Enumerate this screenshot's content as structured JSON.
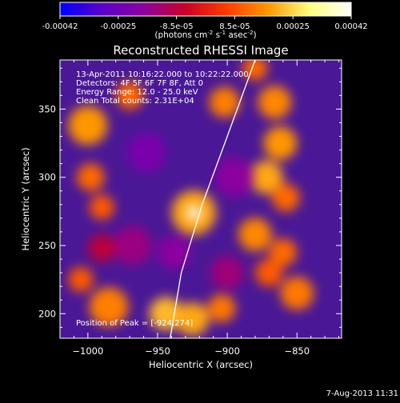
{
  "chart_data": {
    "type": "heatmap",
    "title": "Reconstructed RHESSI Image",
    "xlabel": "Heliocentric X (arcsec)",
    "ylabel": "Heliocentric Y (arcsec)",
    "xlim": [
      -1020,
      -818
    ],
    "ylim": [
      182,
      386
    ],
    "xticks": [
      -1000,
      -950,
      -900,
      -850
    ],
    "yticks": [
      200,
      250,
      300,
      350
    ],
    "info_lines": [
      "13-Apr-2011 10:16:22.000 to 10:22:22.000",
      "Detectors: 4F 5F 6F 7F 8F, Att 0",
      "Energy Range: 12.0 - 25.0 keV",
      "Clean     Total counts: 2.31E+04"
    ],
    "peak_label": "Position of Peak = [-924,274]",
    "peak": {
      "x": -924,
      "y": 274
    },
    "colorbar": {
      "min": -0.00042,
      "max": 0.00042,
      "ticks": [
        "-0.00042",
        "-0.00025",
        "-8.5e-05",
        "8.5e-05",
        "0.00025",
        "0.00042"
      ],
      "unit_label": "(photons cm",
      "unit_exp1": "-2",
      "unit_mid": " s",
      "unit_exp2": "-1",
      "unit_mid2": " asec",
      "unit_exp3": "-2",
      "unit_end": ")",
      "colors": [
        "#0000ff",
        "#5a00c8",
        "#8c00a0",
        "#c80028",
        "#ff3c00",
        "#ff9600",
        "#ffff80",
        "#ffffff"
      ]
    },
    "limb_curve": [
      {
        "x": -941,
        "y": 182
      },
      {
        "x": -933,
        "y": 230
      },
      {
        "x": -918,
        "y": 280
      },
      {
        "x": -900,
        "y": 330
      },
      {
        "x": -880,
        "y": 386
      }
    ],
    "sources": [
      {
        "x": -1000,
        "y": 338,
        "v": 0.00018,
        "s": 14
      },
      {
        "x": -998,
        "y": 300,
        "v": 0.00012,
        "s": 10
      },
      {
        "x": -990,
        "y": 278,
        "v": 0.0001,
        "s": 9
      },
      {
        "x": -970,
        "y": 360,
        "v": 0.00012,
        "s": 10
      },
      {
        "x": -985,
        "y": 205,
        "v": 0.00015,
        "s": 14
      },
      {
        "x": -1005,
        "y": 225,
        "v": 0.0001,
        "s": 9
      },
      {
        "x": -944,
        "y": 200,
        "v": 0.00022,
        "s": 12
      },
      {
        "x": -925,
        "y": 196,
        "v": 0.0002,
        "s": 12
      },
      {
        "x": -904,
        "y": 204,
        "v": 0.00014,
        "s": 10
      },
      {
        "x": -924,
        "y": 274,
        "v": 0.00042,
        "s": 9
      },
      {
        "x": -924,
        "y": 274,
        "v": 0.0002,
        "s": 16
      },
      {
        "x": -902,
        "y": 355,
        "v": 0.00015,
        "s": 11
      },
      {
        "x": -880,
        "y": 380,
        "v": 0.00012,
        "s": 9
      },
      {
        "x": -866,
        "y": 355,
        "v": 0.00016,
        "s": 12
      },
      {
        "x": -862,
        "y": 325,
        "v": 0.00018,
        "s": 12
      },
      {
        "x": -872,
        "y": 300,
        "v": 0.0002,
        "s": 12
      },
      {
        "x": -858,
        "y": 285,
        "v": 0.00012,
        "s": 10
      },
      {
        "x": -880,
        "y": 258,
        "v": 0.00016,
        "s": 12
      },
      {
        "x": -860,
        "y": 245,
        "v": 0.00012,
        "s": 10
      },
      {
        "x": -850,
        "y": 215,
        "v": 0.00014,
        "s": 12
      },
      {
        "x": -870,
        "y": 230,
        "v": 0.0001,
        "s": 10
      },
      {
        "x": -958,
        "y": 318,
        "v": -0.00022,
        "s": 14
      },
      {
        "x": -938,
        "y": 245,
        "v": -0.00018,
        "s": 12
      },
      {
        "x": -968,
        "y": 250,
        "v": -0.00015,
        "s": 14
      },
      {
        "x": -895,
        "y": 300,
        "v": -0.00018,
        "s": 14
      },
      {
        "x": -900,
        "y": 230,
        "v": -0.00014,
        "s": 12
      },
      {
        "x": -990,
        "y": 248,
        "v": -8e-05,
        "s": 10
      }
    ]
  },
  "footer_date": "7-Aug-2013 11:31"
}
